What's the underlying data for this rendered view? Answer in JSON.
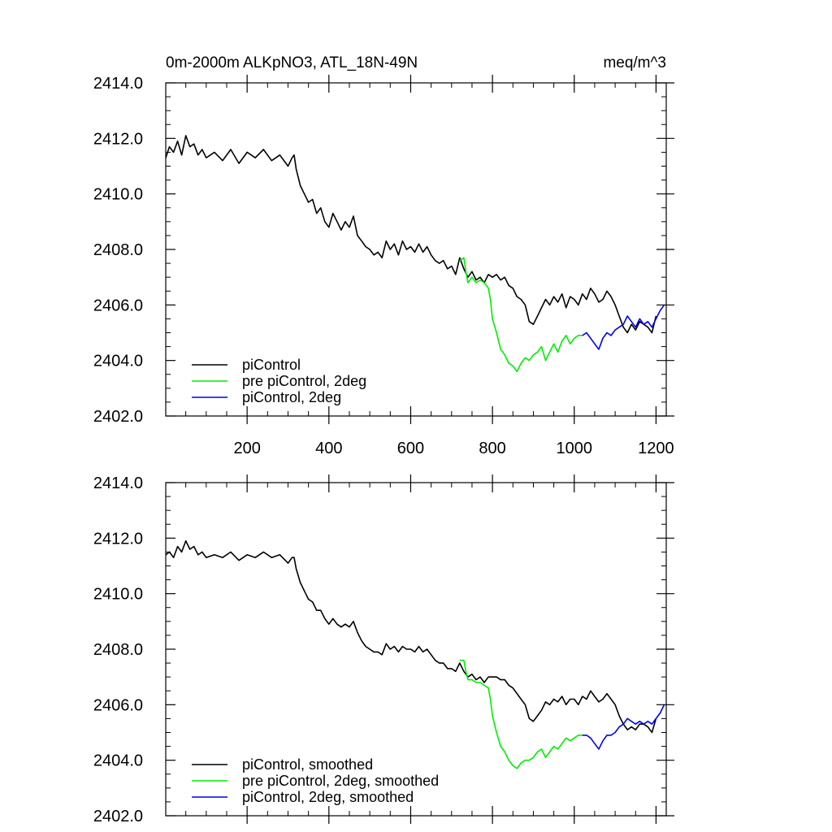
{
  "figure": {
    "title_left": "0m-2000m ALKpNO3, ATL_18N-49N",
    "title_right": "meq/m^3"
  },
  "chart_data": [
    {
      "type": "line",
      "panel": "top",
      "xlim": [
        1,
        1225
      ],
      "ylim": [
        2402.0,
        2414.0
      ],
      "x_ticks": [
        200,
        400,
        600,
        800,
        1000,
        1200
      ],
      "x_tick_labels": [
        "200",
        "400",
        "600",
        "800",
        "1000",
        "1200"
      ],
      "y_ticks": [
        2402,
        2404,
        2406,
        2408,
        2410,
        2412,
        2414
      ],
      "y_tick_labels": [
        "2402.0",
        "2404.0",
        "2406.0",
        "2408.0",
        "2410.0",
        "2412.0",
        "2414.0"
      ],
      "legend_position": "bottom-left",
      "series": [
        {
          "name": "piControl",
          "color": "#000000",
          "x": [
            1,
            10,
            20,
            30,
            40,
            50,
            60,
            70,
            80,
            90,
            100,
            120,
            140,
            160,
            180,
            200,
            220,
            240,
            260,
            280,
            300,
            310,
            315,
            320,
            330,
            340,
            350,
            360,
            370,
            380,
            390,
            400,
            410,
            420,
            430,
            440,
            450,
            460,
            470,
            480,
            490,
            500,
            510,
            520,
            530,
            540,
            550,
            560,
            570,
            580,
            590,
            600,
            610,
            620,
            630,
            640,
            650,
            660,
            670,
            680,
            690,
            700,
            710,
            720,
            730,
            740,
            750,
            760,
            770,
            780,
            790,
            800,
            810,
            820,
            830,
            840,
            850,
            860,
            870,
            880,
            890,
            900,
            910,
            920,
            930,
            940,
            950,
            960,
            970,
            980,
            990,
            1000,
            1010,
            1020,
            1030,
            1040,
            1050,
            1060,
            1070,
            1080,
            1090,
            1100,
            1110,
            1120,
            1130,
            1140,
            1150,
            1160,
            1170,
            1180,
            1190,
            1200
          ],
          "y": [
            2411.3,
            2411.7,
            2411.5,
            2411.9,
            2411.4,
            2412.1,
            2411.7,
            2411.8,
            2411.4,
            2411.6,
            2411.3,
            2411.5,
            2411.2,
            2411.6,
            2411.1,
            2411.5,
            2411.3,
            2411.6,
            2411.2,
            2411.4,
            2411.0,
            2411.3,
            2411.4,
            2410.9,
            2410.3,
            2410.0,
            2409.7,
            2409.8,
            2409.3,
            2409.5,
            2409.0,
            2408.8,
            2409.3,
            2409.0,
            2408.7,
            2409.0,
            2408.8,
            2409.2,
            2408.5,
            2408.3,
            2408.1,
            2408.0,
            2407.8,
            2407.9,
            2407.7,
            2408.3,
            2408.0,
            2408.2,
            2407.8,
            2408.3,
            2408.0,
            2408.1,
            2407.9,
            2408.2,
            2407.9,
            2408.1,
            2407.8,
            2407.6,
            2407.5,
            2407.6,
            2407.3,
            2407.4,
            2407.1,
            2407.7,
            2407.3,
            2407.0,
            2407.2,
            2406.9,
            2407.0,
            2406.8,
            2407.1,
            2407.0,
            2407.1,
            2406.9,
            2407.0,
            2406.7,
            2406.6,
            2406.3,
            2406.2,
            2406.0,
            2405.4,
            2405.3,
            2405.6,
            2405.9,
            2406.2,
            2406.0,
            2406.3,
            2406.1,
            2406.4,
            2405.9,
            2406.3,
            2406.2,
            2406.0,
            2406.4,
            2406.2,
            2406.6,
            2406.4,
            2406.1,
            2406.2,
            2406.5,
            2406.3,
            2406.0,
            2405.6,
            2405.2,
            2405.0,
            2405.3,
            2405.1,
            2405.4,
            2405.3,
            2405.2,
            2405.0,
            2405.6
          ]
        },
        {
          "name": "pre piControl, 2deg",
          "color": "#00ee00",
          "x": [
            720,
            730,
            735,
            740,
            750,
            760,
            770,
            780,
            790,
            795,
            800,
            810,
            820,
            830,
            840,
            850,
            860,
            870,
            880,
            890,
            900,
            910,
            920,
            930,
            940,
            950,
            960,
            970,
            980,
            990,
            1000,
            1010,
            1020
          ],
          "y": [
            2407.6,
            2407.7,
            2407.2,
            2406.8,
            2407.0,
            2406.8,
            2406.9,
            2406.8,
            2406.6,
            2406.2,
            2405.5,
            2405.0,
            2404.4,
            2404.2,
            2403.9,
            2403.8,
            2403.6,
            2403.9,
            2404.1,
            2404.0,
            2404.2,
            2404.3,
            2404.5,
            2404.0,
            2404.3,
            2404.6,
            2404.3,
            2404.7,
            2404.9,
            2404.6,
            2404.8,
            2404.9,
            2404.9
          ]
        },
        {
          "name": "piControl, 2deg",
          "color": "#0000ee",
          "x": [
            1020,
            1030,
            1040,
            1050,
            1060,
            1070,
            1080,
            1090,
            1100,
            1110,
            1120,
            1130,
            1140,
            1150,
            1160,
            1170,
            1180,
            1190,
            1200,
            1210,
            1220
          ],
          "y": [
            2404.9,
            2405.0,
            2404.8,
            2404.6,
            2404.4,
            2404.8,
            2405.0,
            2404.9,
            2405.1,
            2405.2,
            2405.3,
            2405.6,
            2405.4,
            2405.2,
            2405.5,
            2405.3,
            2405.4,
            2405.2,
            2405.5,
            2405.8,
            2406.0
          ]
        }
      ]
    },
    {
      "type": "line",
      "panel": "bottom",
      "xlim": [
        1,
        1225
      ],
      "ylim": [
        2402.0,
        2414.0
      ],
      "x_ticks": [
        200,
        400,
        600,
        800,
        1000,
        1200
      ],
      "y_ticks": [
        2402,
        2404,
        2406,
        2408,
        2410,
        2412,
        2414
      ],
      "y_tick_labels": [
        "2402.0",
        "2404.0",
        "2406.0",
        "2408.0",
        "2410.0",
        "2412.0",
        "2414.0"
      ],
      "legend_position": "bottom-left",
      "series": [
        {
          "name": "piControl, smoothed",
          "color": "#000000",
          "x": [
            1,
            10,
            20,
            30,
            40,
            50,
            60,
            70,
            80,
            90,
            100,
            120,
            140,
            160,
            180,
            200,
            220,
            240,
            260,
            280,
            300,
            310,
            315,
            320,
            330,
            340,
            350,
            360,
            370,
            380,
            390,
            400,
            410,
            420,
            430,
            440,
            450,
            460,
            470,
            480,
            490,
            500,
            510,
            520,
            530,
            540,
            550,
            560,
            570,
            580,
            590,
            600,
            610,
            620,
            630,
            640,
            650,
            660,
            670,
            680,
            690,
            700,
            710,
            720,
            730,
            740,
            750,
            760,
            770,
            780,
            790,
            800,
            810,
            820,
            830,
            840,
            850,
            860,
            870,
            880,
            890,
            900,
            910,
            920,
            930,
            940,
            950,
            960,
            970,
            980,
            990,
            1000,
            1010,
            1020,
            1030,
            1040,
            1050,
            1060,
            1070,
            1080,
            1090,
            1100,
            1110,
            1120,
            1130,
            1140,
            1150,
            1160,
            1170,
            1180,
            1190,
            1200
          ],
          "y": [
            2411.4,
            2411.5,
            2411.3,
            2411.7,
            2411.5,
            2411.9,
            2411.6,
            2411.7,
            2411.4,
            2411.5,
            2411.3,
            2411.4,
            2411.3,
            2411.5,
            2411.2,
            2411.4,
            2411.3,
            2411.5,
            2411.3,
            2411.4,
            2411.1,
            2411.3,
            2411.3,
            2410.9,
            2410.4,
            2410.1,
            2409.8,
            2409.7,
            2409.4,
            2409.4,
            2409.1,
            2408.9,
            2409.1,
            2408.9,
            2408.8,
            2408.9,
            2408.8,
            2409.0,
            2408.6,
            2408.3,
            2408.1,
            2408.0,
            2407.9,
            2407.9,
            2407.8,
            2408.2,
            2408.0,
            2408.1,
            2407.9,
            2408.1,
            2408.0,
            2408.0,
            2407.9,
            2408.1,
            2407.9,
            2408.0,
            2407.8,
            2407.6,
            2407.5,
            2407.5,
            2407.3,
            2407.3,
            2407.2,
            2407.5,
            2407.2,
            2407.0,
            2407.1,
            2406.9,
            2407.0,
            2406.8,
            2407.0,
            2407.0,
            2407.0,
            2406.9,
            2406.9,
            2406.7,
            2406.6,
            2406.4,
            2406.2,
            2406.0,
            2405.5,
            2405.4,
            2405.6,
            2405.8,
            2406.1,
            2406.0,
            2406.2,
            2406.1,
            2406.3,
            2406.0,
            2406.2,
            2406.2,
            2406.0,
            2406.3,
            2406.2,
            2406.5,
            2406.3,
            2406.1,
            2406.2,
            2406.4,
            2406.2,
            2406.0,
            2405.6,
            2405.3,
            2405.1,
            2405.2,
            2405.1,
            2405.3,
            2405.3,
            2405.2,
            2405.0,
            2405.5
          ]
        },
        {
          "name": "pre piControl, 2deg, smoothed",
          "color": "#00ee00",
          "x": [
            720,
            730,
            735,
            740,
            750,
            760,
            770,
            780,
            790,
            795,
            800,
            810,
            820,
            830,
            840,
            850,
            860,
            870,
            880,
            890,
            900,
            910,
            920,
            930,
            940,
            950,
            960,
            970,
            980,
            990,
            1000,
            1010,
            1020
          ],
          "y": [
            2407.6,
            2407.6,
            2407.2,
            2406.9,
            2406.9,
            2406.8,
            2406.8,
            2406.7,
            2406.6,
            2406.2,
            2405.6,
            2405.0,
            2404.5,
            2404.3,
            2404.0,
            2403.8,
            2403.7,
            2403.9,
            2404.0,
            2404.0,
            2404.1,
            2404.3,
            2404.4,
            2404.1,
            2404.3,
            2404.5,
            2404.4,
            2404.6,
            2404.8,
            2404.7,
            2404.8,
            2404.9,
            2404.9
          ]
        },
        {
          "name": "piControl, 2deg, smoothed",
          "color": "#0000ee",
          "x": [
            1020,
            1030,
            1040,
            1050,
            1060,
            1070,
            1080,
            1090,
            1100,
            1110,
            1120,
            1130,
            1140,
            1150,
            1160,
            1170,
            1180,
            1190,
            1200,
            1210,
            1220
          ],
          "y": [
            2404.9,
            2404.9,
            2404.8,
            2404.6,
            2404.4,
            2404.7,
            2404.9,
            2404.9,
            2405.0,
            2405.2,
            2405.3,
            2405.5,
            2405.4,
            2405.3,
            2405.4,
            2405.3,
            2405.4,
            2405.3,
            2405.5,
            2405.7,
            2406.0
          ]
        }
      ]
    }
  ]
}
